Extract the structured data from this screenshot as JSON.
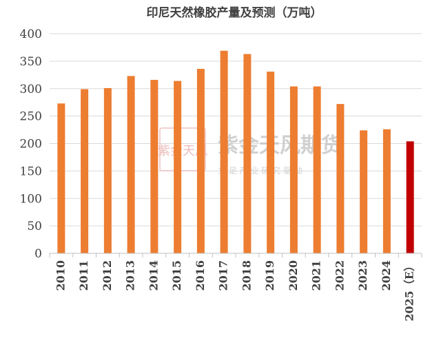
{
  "chart_data": {
    "type": "bar",
    "title": "印尼天然橡胶产量及预测（万吨）",
    "xlabel": "",
    "ylabel": "",
    "ylim": [
      0,
      400
    ],
    "yticks": [
      0,
      50,
      100,
      150,
      200,
      250,
      300,
      350,
      400
    ],
    "grid": true,
    "legend": "none",
    "categories": [
      "2010",
      "2011",
      "2012",
      "2013",
      "2014",
      "2015",
      "2016",
      "2017",
      "2018",
      "2019",
      "2020",
      "2021",
      "2022",
      "2023",
      "2024",
      "2025（E）"
    ],
    "values": [
      273,
      299,
      301,
      323,
      316,
      314,
      336,
      369,
      363,
      331,
      304,
      304,
      272,
      224,
      226,
      204
    ],
    "series_colors": [
      "#ED7D31",
      "#ED7D31",
      "#ED7D31",
      "#ED7D31",
      "#ED7D31",
      "#ED7D31",
      "#ED7D31",
      "#ED7D31",
      "#ED7D31",
      "#ED7D31",
      "#ED7D31",
      "#ED7D31",
      "#ED7D31",
      "#ED7D31",
      "#ED7D31",
      "#C00000"
    ]
  },
  "watermark": {
    "brand": "紫金天风期货",
    "slogan": "立 足 产 业   研 究 驱 动",
    "seal_text": "紫金天风"
  },
  "colors": {
    "bar": "#ED7D31",
    "forecast_bar": "#C00000",
    "grid": "#D9D9D9",
    "axis": "#BFBFBF",
    "text": "#404040",
    "watermark": "#C8C8C8",
    "seal": "#E8A0A0"
  }
}
